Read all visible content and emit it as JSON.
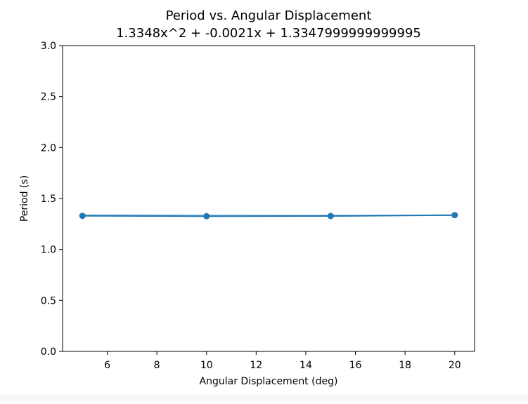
{
  "chart_data": {
    "type": "line",
    "title": "Period vs. Angular Displacement",
    "subtitle": "1.3348x^2 + -0.0021x + 1.3347999999999995",
    "xlabel": "Angular Displacement (deg)",
    "ylabel": "Period (s)",
    "xlim": [
      4.2,
      20.8
    ],
    "ylim": [
      0,
      3
    ],
    "xticks": [
      6,
      8,
      10,
      12,
      14,
      16,
      18,
      20
    ],
    "yticks": [
      0.0,
      0.5,
      1.0,
      1.5,
      2.0,
      2.5,
      3.0
    ],
    "grid": false,
    "series": [
      {
        "color": "#1f77b4",
        "marker": "circle",
        "x": [
          5,
          10,
          15,
          20
        ],
        "y": [
          1.33,
          1.326,
          1.328,
          1.337
        ],
        "yerr": [
          0.01,
          0.01,
          0.01,
          0.01
        ]
      },
      {
        "color": "#8fbbd9",
        "marker": "none",
        "x": [
          5,
          10,
          15,
          20
        ],
        "y": [
          1.338,
          1.335,
          1.334,
          1.335
        ]
      }
    ]
  }
}
